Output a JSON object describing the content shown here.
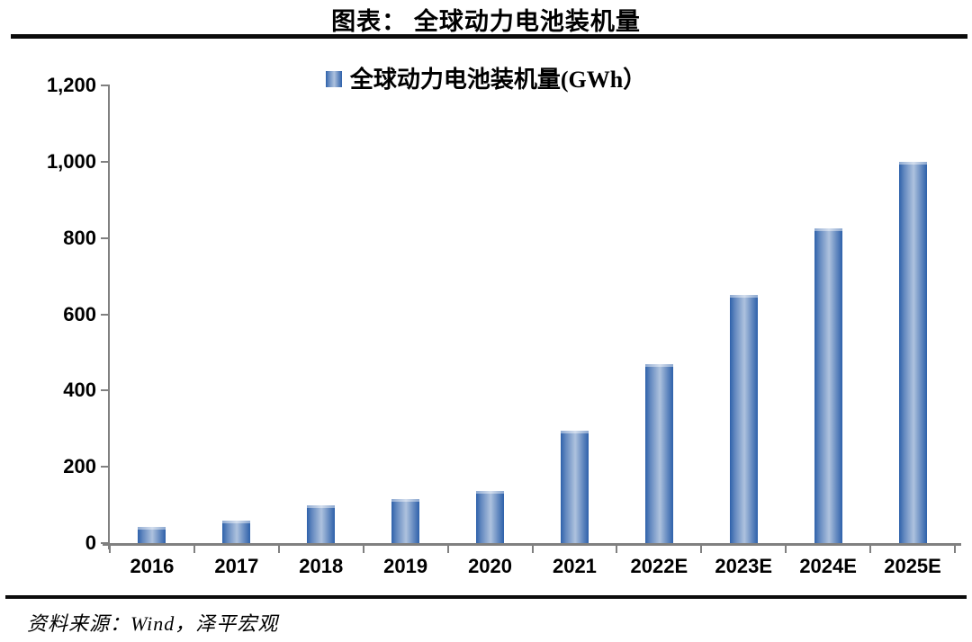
{
  "page": {
    "title": "图表：  全球动力电池装机量",
    "source": "资料来源：Wind，泽平宏观"
  },
  "chart_data": {
    "type": "bar",
    "title": "图表：  全球动力电池装机量",
    "legend": "全球动力电池装机量(GWh）",
    "legend_position": "top-center",
    "categories": [
      "2016",
      "2017",
      "2018",
      "2019",
      "2020",
      "2021",
      "2022E",
      "2023E",
      "2024E",
      "2025E"
    ],
    "values": [
      43,
      59,
      98,
      115,
      137,
      295,
      470,
      650,
      825,
      1000
    ],
    "xlabel": "",
    "ylabel": "",
    "ylim": [
      0,
      1200
    ],
    "ytick_interval": 200,
    "ytick_labels": [
      "0",
      "200",
      "400",
      "600",
      "800",
      "1,000",
      "1,200"
    ],
    "grid": false,
    "colors": {
      "bar_edge": "#2e61aa",
      "bar_mid": "#6288bf",
      "bar_light": "#aec2de",
      "axis": "#808080",
      "text": "#000000",
      "rule": "#0b0b0b"
    }
  }
}
